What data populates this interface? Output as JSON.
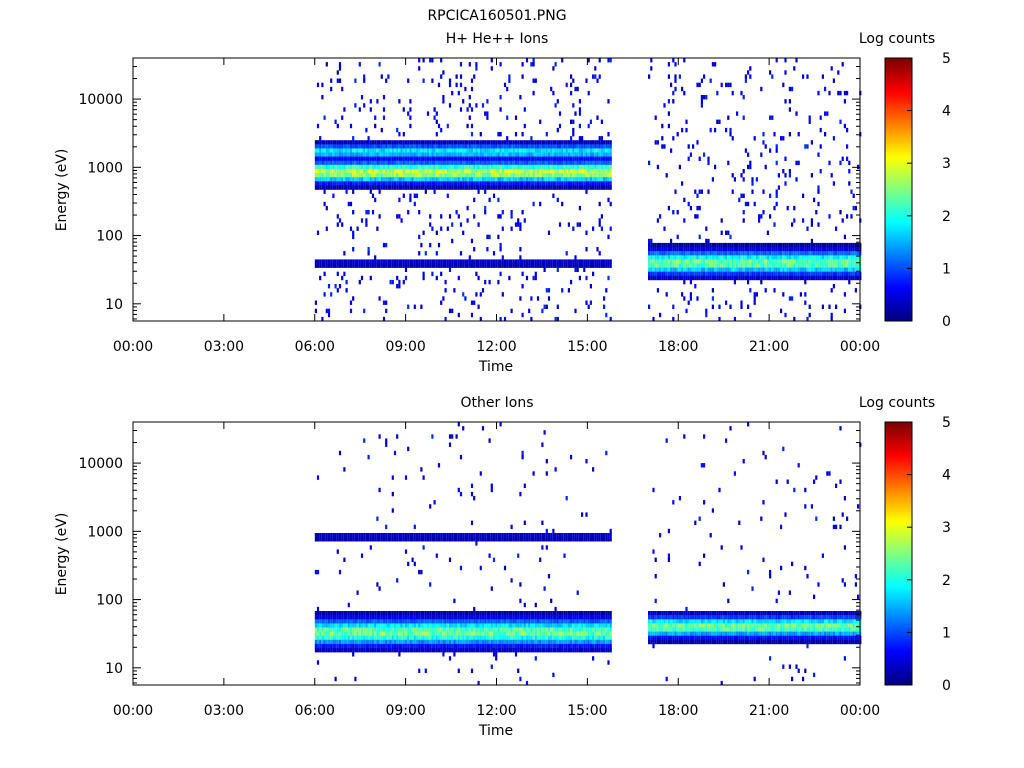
{
  "figure_title": "RPCICA160501.PNG",
  "chart_data": [
    {
      "type": "heatmap",
      "title": "H+ He++ Ions",
      "xlabel": "Time",
      "ylabel": "Energy (eV)",
      "x_ticks": [
        "00:00",
        "03:00",
        "06:00",
        "09:00",
        "12:00",
        "15:00",
        "18:00",
        "21:00",
        "00:00"
      ],
      "x_range_hours": [
        0,
        24
      ],
      "y_scale": "log",
      "y_ticks": [
        {
          "value": 10,
          "label": "10"
        },
        {
          "value": 100,
          "label": "100"
        },
        {
          "value": 1000,
          "label": "1000"
        },
        {
          "value": 10000,
          "label": "10000"
        }
      ],
      "y_range": [
        5.6,
        40000
      ],
      "colorbar": {
        "label": "Log counts",
        "min": 0,
        "max": 5,
        "ticks": [
          "0",
          "1",
          "2",
          "3",
          "4",
          "5"
        ]
      },
      "data_intervals_hours": [
        [
          6.0,
          15.8
        ],
        [
          17.0,
          24.0
        ]
      ],
      "bands": [
        {
          "t_start": 6.0,
          "t_end": 15.8,
          "energy_ev": 850,
          "width_decades": 0.14,
          "log_counts": 2.8
        },
        {
          "t_start": 6.0,
          "t_end": 15.8,
          "energy_ev": 1700,
          "width_decades": 0.1,
          "log_counts": 1.8
        },
        {
          "t_start": 6.0,
          "t_end": 15.8,
          "energy_ev": 40,
          "width_decades": 0.06,
          "log_counts": 0.4
        },
        {
          "t_start": 17.0,
          "t_end": 24.0,
          "energy_ev": 40,
          "width_decades": 0.16,
          "log_counts": 2.4
        }
      ]
    },
    {
      "type": "heatmap",
      "title": "Other Ions",
      "xlabel": "Time",
      "ylabel": "Energy (eV)",
      "x_ticks": [
        "00:00",
        "03:00",
        "06:00",
        "09:00",
        "12:00",
        "15:00",
        "18:00",
        "21:00",
        "00:00"
      ],
      "x_range_hours": [
        0,
        24
      ],
      "y_scale": "log",
      "y_ticks": [
        {
          "value": 10,
          "label": "10"
        },
        {
          "value": 100,
          "label": "100"
        },
        {
          "value": 1000,
          "label": "1000"
        },
        {
          "value": 10000,
          "label": "10000"
        }
      ],
      "y_range": [
        5.6,
        40000
      ],
      "colorbar": {
        "label": "Log counts",
        "min": 0,
        "max": 5,
        "ticks": [
          "0",
          "1",
          "2",
          "3",
          "4",
          "5"
        ]
      },
      "data_intervals_hours": [
        [
          6.0,
          15.8
        ],
        [
          17.0,
          24.0
        ]
      ],
      "bands": [
        {
          "t_start": 6.0,
          "t_end": 15.8,
          "energy_ev": 33,
          "width_decades": 0.18,
          "log_counts": 2.4
        },
        {
          "t_start": 6.0,
          "t_end": 15.8,
          "energy_ev": 850,
          "width_decades": 0.06,
          "log_counts": 0.4
        },
        {
          "t_start": 17.0,
          "t_end": 24.0,
          "energy_ev": 40,
          "width_decades": 0.14,
          "log_counts": 2.4
        }
      ]
    }
  ]
}
